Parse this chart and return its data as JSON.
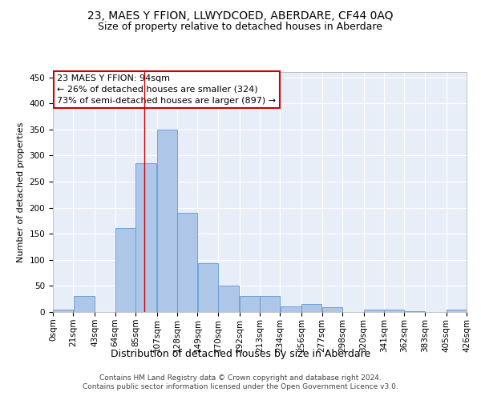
{
  "title": "23, MAES Y FFION, LLWYDCOED, ABERDARE, CF44 0AQ",
  "subtitle": "Size of property relative to detached houses in Aberdare",
  "xlabel": "Distribution of detached houses by size in Aberdare",
  "ylabel": "Number of detached properties",
  "bar_color": "#aec6e8",
  "bar_edge_color": "#5b9bd5",
  "annotation_line1": "23 MAES Y FFION: 94sqm",
  "annotation_line2": "← 26% of detached houses are smaller (324)",
  "annotation_line3": "73% of semi-detached houses are larger (897) →",
  "vline_x": 94,
  "vline_color": "#cc0000",
  "bins": [
    0,
    21,
    43,
    64,
    85,
    107,
    128,
    149,
    170,
    192,
    213,
    234,
    256,
    277,
    298,
    320,
    341,
    362,
    383,
    405,
    426
  ],
  "bin_labels": [
    "0sqm",
    "21sqm",
    "43sqm",
    "64sqm",
    "85sqm",
    "107sqm",
    "128sqm",
    "149sqm",
    "170sqm",
    "192sqm",
    "213sqm",
    "234sqm",
    "256sqm",
    "277sqm",
    "298sqm",
    "320sqm",
    "341sqm",
    "362sqm",
    "383sqm",
    "405sqm",
    "426sqm"
  ],
  "bar_heights": [
    4,
    30,
    0,
    161,
    285,
    350,
    190,
    93,
    50,
    31,
    31,
    11,
    16,
    9,
    0,
    5,
    5,
    1,
    0,
    5
  ],
  "ylim": [
    0,
    460
  ],
  "yticks": [
    0,
    50,
    100,
    150,
    200,
    250,
    300,
    350,
    400,
    450
  ],
  "background_color": "#e8eef8",
  "footer_text": "Contains HM Land Registry data © Crown copyright and database right 2024.\nContains public sector information licensed under the Open Government Licence v3.0.",
  "title_fontsize": 10,
  "subtitle_fontsize": 9,
  "xlabel_fontsize": 9,
  "ylabel_fontsize": 8,
  "tick_fontsize": 7.5,
  "annotation_fontsize": 8,
  "footer_fontsize": 6.5
}
